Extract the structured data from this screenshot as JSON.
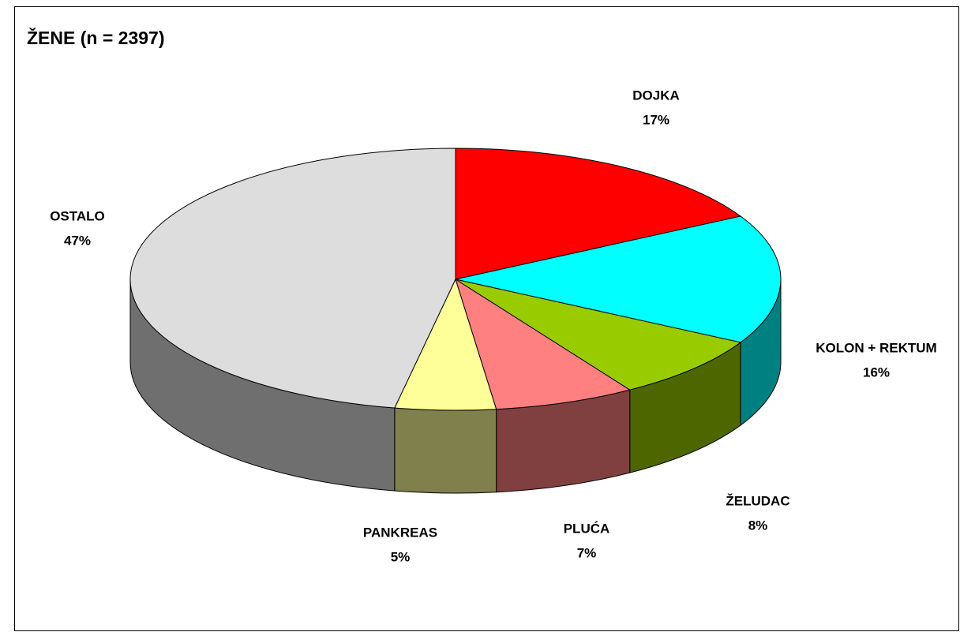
{
  "chart_data": {
    "type": "pie",
    "title": "ŽENE (n = 2397)",
    "categories": [
      "DOJKA",
      "KOLON + REKTUM",
      "ŽELUDAC",
      "PLUĆA",
      "PANKREAS",
      "OSTALO"
    ],
    "values": [
      17,
      16,
      8,
      7,
      5,
      47
    ],
    "value_labels": [
      "17%",
      "16%",
      "8%",
      "7%",
      "5%",
      "47%"
    ],
    "colors": [
      "#ff0000",
      "#00ffff",
      "#99cc00",
      "#ff8080",
      "#ffff99",
      "#dddddd"
    ]
  }
}
